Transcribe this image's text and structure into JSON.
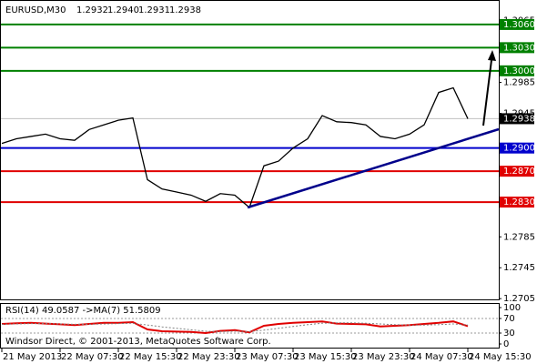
{
  "chart_data": [
    {
      "type": "line",
      "symbol": "EURUSD,M30",
      "ohlc": [
        1.2932,
        1.294,
        1.2931,
        1.2938
      ],
      "ohlc_labels": [
        "1.2932",
        "1.2940",
        "1.2931",
        "1.2938"
      ],
      "categories": [
        "21 May 2013",
        null,
        null,
        null,
        "22 May 07:30",
        null,
        null,
        null,
        "22 May 15:30",
        null,
        null,
        null,
        "22 May 23:30",
        null,
        null,
        null,
        "23 May 07:30",
        null,
        null,
        null,
        "23 May 15:30",
        null,
        null,
        null,
        "23 May 23:30",
        null,
        null,
        null,
        "24 May 07:30",
        null,
        null,
        null,
        "24 May 15:30"
      ],
      "values": [
        1.2906,
        1.2912,
        1.2915,
        1.2918,
        1.2912,
        1.291,
        1.2924,
        1.293,
        1.2936,
        1.2939,
        1.2859,
        1.2847,
        1.2843,
        1.2839,
        1.2831,
        1.2841,
        1.2839,
        1.2823,
        1.2877,
        1.2883,
        1.29,
        1.2912,
        1.2942,
        1.2934,
        1.2933,
        1.293,
        1.2915,
        1.2912,
        1.2918,
        1.293,
        1.2972,
        1.2978,
        1.2938
      ],
      "color": "#000000",
      "ylim": [
        1.2704,
        1.3087
      ],
      "yticks": [
        1.3065,
        1.2985,
        1.2945,
        1.2785,
        1.2745,
        1.2705
      ],
      "levels": [
        {
          "value": 1.306,
          "label": "1.3060",
          "color": "#008000"
        },
        {
          "value": 1.303,
          "label": "1.3030",
          "color": "#008000"
        },
        {
          "value": 1.3,
          "label": "1.3000",
          "color": "#008000"
        },
        {
          "value": 1.29,
          "label": "1.2900",
          "color": "#0000cd"
        },
        {
          "value": 1.287,
          "label": "1.2870",
          "color": "#e00000"
        },
        {
          "value": 1.283,
          "label": "1.2830",
          "color": "#e00000"
        }
      ],
      "last": 1.2938
    },
    {
      "type": "line",
      "title": "RSI(14) 49.0587 ->MA(7) 51.5809",
      "series": [
        {
          "color": "#e00000",
          "values": [
            55,
            57,
            58,
            56,
            54,
            52,
            55,
            58,
            58,
            60,
            40,
            35,
            34,
            33,
            30,
            36,
            38,
            32,
            50,
            55,
            58,
            60,
            62,
            56,
            55,
            54,
            48,
            50,
            52,
            55,
            58,
            62,
            49
          ]
        },
        {
          "color": "#808080",
          "values": [
            54,
            55,
            56,
            56,
            55,
            54,
            54,
            55,
            56,
            57,
            52,
            47,
            43,
            39,
            35,
            34,
            35,
            34,
            38,
            43,
            48,
            53,
            57,
            58,
            58,
            57,
            55,
            53,
            52,
            52,
            53,
            55,
            52
          ]
        }
      ],
      "ylim": [
        0,
        100
      ],
      "yticks": [
        100,
        70,
        30,
        0
      ]
    }
  ],
  "footer": "Windsor Direct, © 2001-2013, MetaQuotes Software Corp."
}
